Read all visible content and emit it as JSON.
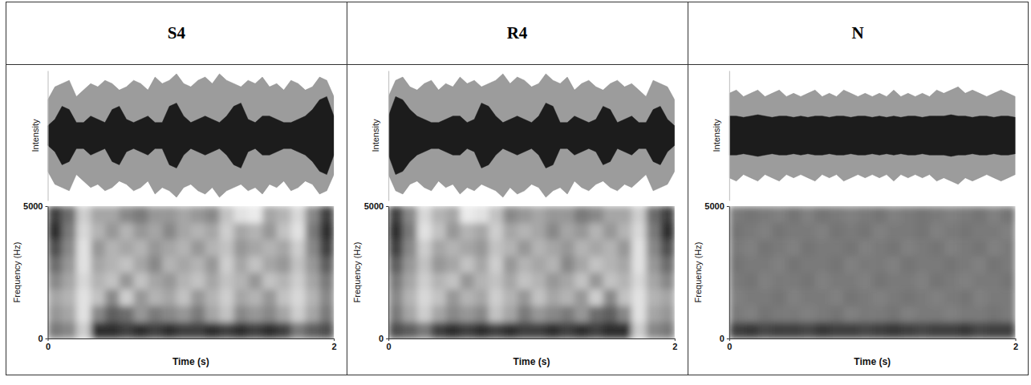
{
  "chart_data": [
    {
      "type": "spectrogram",
      "title": "S4",
      "waveform": {
        "ylabel": "Intensity",
        "xlim": [
          0,
          2
        ],
        "ylim": [
          -1,
          1
        ],
        "tick_labels": false,
        "x": [
          0,
          0.05,
          0.1,
          0.15,
          0.2,
          0.25,
          0.3,
          0.35,
          0.4,
          0.45,
          0.5,
          0.55,
          0.6,
          0.65,
          0.7,
          0.75,
          0.8,
          0.85,
          0.9,
          0.95,
          1,
          1.05,
          1.1,
          1.15,
          1.2,
          1.25,
          1.3,
          1.35,
          1.4,
          1.45,
          1.5,
          1.55,
          1.6,
          1.65,
          1.7,
          1.75,
          1.8,
          1.85,
          1.9,
          1.95,
          2
        ],
        "values": [
          0.55,
          0.75,
          0.8,
          0.85,
          0.6,
          0.7,
          0.8,
          0.75,
          0.85,
          0.8,
          0.7,
          0.75,
          0.85,
          0.8,
          0.7,
          0.9,
          0.8,
          0.85,
          0.95,
          0.8,
          0.75,
          0.85,
          0.9,
          0.8,
          0.95,
          0.85,
          0.8,
          0.75,
          0.85,
          0.8,
          0.9,
          0.75,
          0.8,
          0.7,
          0.85,
          0.8,
          0.7,
          0.75,
          0.9,
          0.85,
          0.6
        ],
        "rms": [
          0.15,
          0.25,
          0.45,
          0.4,
          0.2,
          0.2,
          0.3,
          0.25,
          0.2,
          0.4,
          0.45,
          0.25,
          0.2,
          0.25,
          0.3,
          0.2,
          0.2,
          0.45,
          0.5,
          0.3,
          0.2,
          0.25,
          0.3,
          0.25,
          0.2,
          0.3,
          0.45,
          0.5,
          0.25,
          0.2,
          0.3,
          0.3,
          0.25,
          0.2,
          0.2,
          0.25,
          0.3,
          0.4,
          0.55,
          0.6,
          0.3
        ]
      },
      "spectrogram": {
        "xlabel": "Time (s)",
        "ylabel": "Frequency (Hz)",
        "xlim": [
          0,
          2
        ],
        "ylim": [
          0,
          5000
        ],
        "xticks": [
          0,
          2
        ],
        "yticks": [
          0,
          5000
        ],
        "x_edges": [
          0,
          0.1,
          0.2,
          0.3,
          0.4,
          0.5,
          0.6,
          0.7,
          0.8,
          0.9,
          1,
          1.1,
          1.2,
          1.3,
          1.4,
          1.5,
          1.6,
          1.7,
          1.8,
          1.9,
          2
        ],
        "y_edges": [
          0,
          625,
          1250,
          1875,
          2500,
          3125,
          3750,
          4375,
          5000
        ],
        "cells": [
          [
            0.6,
            0.55,
            0.3,
            0.85,
            0.85,
            0.8,
            0.85,
            0.8,
            0.85,
            0.8,
            0.8,
            0.85,
            0.8,
            0.85,
            0.8,
            0.85,
            0.8,
            0.6,
            0.7,
            0.75
          ],
          [
            0.5,
            0.45,
            0.2,
            0.55,
            0.7,
            0.65,
            0.5,
            0.6,
            0.55,
            0.5,
            0.6,
            0.45,
            0.35,
            0.55,
            0.5,
            0.55,
            0.45,
            0.3,
            0.45,
            0.6
          ],
          [
            0.45,
            0.4,
            0.2,
            0.35,
            0.55,
            0.3,
            0.5,
            0.4,
            0.45,
            0.35,
            0.5,
            0.4,
            0.3,
            0.45,
            0.4,
            0.5,
            0.35,
            0.25,
            0.4,
            0.55
          ],
          [
            0.55,
            0.45,
            0.25,
            0.4,
            0.35,
            0.5,
            0.35,
            0.45,
            0.5,
            0.4,
            0.35,
            0.45,
            0.35,
            0.4,
            0.5,
            0.35,
            0.4,
            0.3,
            0.45,
            0.6
          ],
          [
            0.65,
            0.5,
            0.2,
            0.45,
            0.4,
            0.35,
            0.45,
            0.55,
            0.4,
            0.45,
            0.4,
            0.5,
            0.3,
            0.45,
            0.35,
            0.45,
            0.5,
            0.35,
            0.5,
            0.7
          ],
          [
            0.75,
            0.55,
            0.2,
            0.5,
            0.4,
            0.45,
            0.4,
            0.5,
            0.45,
            0.4,
            0.5,
            0.4,
            0.35,
            0.5,
            0.45,
            0.4,
            0.45,
            0.3,
            0.55,
            0.8
          ],
          [
            0.85,
            0.6,
            0.25,
            0.4,
            0.5,
            0.4,
            0.5,
            0.45,
            0.55,
            0.45,
            0.4,
            0.45,
            0.3,
            0.45,
            0.4,
            0.5,
            0.35,
            0.2,
            0.6,
            0.85
          ],
          [
            0.8,
            0.65,
            0.3,
            0.45,
            0.45,
            0.55,
            0.6,
            0.5,
            0.5,
            0.45,
            0.5,
            0.55,
            0.35,
            0.2,
            0.15,
            0.45,
            0.4,
            0.25,
            0.55,
            0.8
          ]
        ]
      }
    },
    {
      "type": "spectrogram",
      "title": "R4",
      "waveform": {
        "ylabel": "Intensity",
        "xlim": [
          0,
          2
        ],
        "ylim": [
          -1,
          1
        ],
        "tick_labels": false,
        "x": [
          0,
          0.05,
          0.1,
          0.15,
          0.2,
          0.25,
          0.3,
          0.35,
          0.4,
          0.45,
          0.5,
          0.55,
          0.6,
          0.65,
          0.7,
          0.75,
          0.8,
          0.85,
          0.9,
          0.95,
          1,
          1.05,
          1.1,
          1.15,
          1.2,
          1.25,
          1.3,
          1.35,
          1.4,
          1.45,
          1.5,
          1.55,
          1.6,
          1.65,
          1.7,
          1.75,
          1.8,
          1.85,
          1.9,
          1.95,
          2
        ],
        "values": [
          0.6,
          0.85,
          0.9,
          0.75,
          0.7,
          0.8,
          0.85,
          0.7,
          0.8,
          0.75,
          0.9,
          0.8,
          0.85,
          0.75,
          0.8,
          0.85,
          0.95,
          0.8,
          0.9,
          0.85,
          0.75,
          0.8,
          0.95,
          0.85,
          0.8,
          0.9,
          0.7,
          0.8,
          0.85,
          0.75,
          0.7,
          0.8,
          0.85,
          0.75,
          0.8,
          0.7,
          0.6,
          0.85,
          0.8,
          0.75,
          0.55
        ],
        "rms": [
          0.3,
          0.6,
          0.55,
          0.4,
          0.3,
          0.25,
          0.2,
          0.2,
          0.25,
          0.3,
          0.3,
          0.2,
          0.25,
          0.5,
          0.45,
          0.3,
          0.2,
          0.25,
          0.3,
          0.25,
          0.2,
          0.3,
          0.5,
          0.45,
          0.2,
          0.2,
          0.3,
          0.25,
          0.2,
          0.25,
          0.45,
          0.4,
          0.2,
          0.25,
          0.3,
          0.2,
          0.2,
          0.4,
          0.45,
          0.25,
          0.15
        ]
      },
      "spectrogram": {
        "xlabel": "Time (s)",
        "ylabel": "Frequency (Hz)",
        "xlim": [
          0,
          2
        ],
        "ylim": [
          0,
          5000
        ],
        "xticks": [
          0,
          2
        ],
        "yticks": [
          0,
          5000
        ],
        "x_edges": [
          0,
          0.1,
          0.2,
          0.3,
          0.4,
          0.5,
          0.6,
          0.7,
          0.8,
          0.9,
          1,
          1.1,
          1.2,
          1.3,
          1.4,
          1.5,
          1.6,
          1.7,
          1.8,
          1.9,
          2
        ],
        "y_edges": [
          0,
          625,
          1250,
          1875,
          2500,
          3125,
          3750,
          4375,
          5000
        ],
        "cells": [
          [
            0.75,
            0.7,
            0.6,
            0.8,
            0.85,
            0.8,
            0.85,
            0.8,
            0.85,
            0.8,
            0.8,
            0.85,
            0.8,
            0.85,
            0.8,
            0.85,
            0.85,
            0.3,
            0.55,
            0.6
          ],
          [
            0.6,
            0.45,
            0.3,
            0.45,
            0.55,
            0.5,
            0.55,
            0.35,
            0.45,
            0.6,
            0.5,
            0.55,
            0.6,
            0.5,
            0.65,
            0.7,
            0.55,
            0.2,
            0.45,
            0.5
          ],
          [
            0.55,
            0.4,
            0.25,
            0.35,
            0.5,
            0.4,
            0.45,
            0.3,
            0.4,
            0.5,
            0.35,
            0.45,
            0.4,
            0.5,
            0.3,
            0.55,
            0.35,
            0.2,
            0.4,
            0.45
          ],
          [
            0.6,
            0.45,
            0.3,
            0.4,
            0.35,
            0.5,
            0.4,
            0.35,
            0.45,
            0.35,
            0.4,
            0.5,
            0.45,
            0.35,
            0.5,
            0.35,
            0.4,
            0.25,
            0.45,
            0.55
          ],
          [
            0.7,
            0.5,
            0.35,
            0.5,
            0.45,
            0.35,
            0.45,
            0.3,
            0.5,
            0.4,
            0.45,
            0.4,
            0.55,
            0.45,
            0.35,
            0.4,
            0.45,
            0.2,
            0.5,
            0.65
          ],
          [
            0.8,
            0.55,
            0.3,
            0.45,
            0.4,
            0.45,
            0.5,
            0.35,
            0.4,
            0.5,
            0.4,
            0.45,
            0.5,
            0.4,
            0.45,
            0.4,
            0.5,
            0.2,
            0.55,
            0.75
          ],
          [
            0.85,
            0.6,
            0.2,
            0.35,
            0.5,
            0.4,
            0.45,
            0.3,
            0.45,
            0.4,
            0.45,
            0.55,
            0.45,
            0.5,
            0.4,
            0.5,
            0.4,
            0.25,
            0.6,
            0.85
          ],
          [
            0.8,
            0.55,
            0.25,
            0.4,
            0.45,
            0.15,
            0.2,
            0.35,
            0.55,
            0.5,
            0.45,
            0.5,
            0.5,
            0.6,
            0.55,
            0.45,
            0.45,
            0.3,
            0.65,
            0.8
          ]
        ]
      }
    },
    {
      "type": "spectrogram",
      "title": "N",
      "waveform": {
        "ylabel": "Intensity",
        "xlim": [
          0,
          2
        ],
        "ylim": [
          -1,
          1
        ],
        "tick_labels": false,
        "x": [
          0,
          0.05,
          0.1,
          0.15,
          0.2,
          0.25,
          0.3,
          0.35,
          0.4,
          0.45,
          0.5,
          0.55,
          0.6,
          0.65,
          0.7,
          0.75,
          0.8,
          0.85,
          0.9,
          0.95,
          1,
          1.05,
          1.1,
          1.15,
          1.2,
          1.25,
          1.3,
          1.35,
          1.4,
          1.45,
          1.5,
          1.55,
          1.6,
          1.65,
          1.7,
          1.75,
          1.8,
          1.85,
          1.9,
          1.95,
          2
        ],
        "values": [
          0.65,
          0.7,
          0.6,
          0.65,
          0.7,
          0.6,
          0.65,
          0.7,
          0.6,
          0.65,
          0.6,
          0.65,
          0.7,
          0.6,
          0.65,
          0.6,
          0.7,
          0.65,
          0.6,
          0.65,
          0.6,
          0.65,
          0.6,
          0.7,
          0.6,
          0.65,
          0.6,
          0.65,
          0.6,
          0.7,
          0.65,
          0.7,
          0.75,
          0.65,
          0.7,
          0.65,
          0.6,
          0.65,
          0.7,
          0.65,
          0.6
        ],
        "rms": [
          0.3,
          0.3,
          0.28,
          0.3,
          0.32,
          0.3,
          0.28,
          0.3,
          0.3,
          0.28,
          0.3,
          0.28,
          0.3,
          0.3,
          0.28,
          0.3,
          0.3,
          0.28,
          0.3,
          0.3,
          0.28,
          0.3,
          0.28,
          0.3,
          0.28,
          0.3,
          0.3,
          0.28,
          0.3,
          0.3,
          0.3,
          0.32,
          0.3,
          0.3,
          0.28,
          0.3,
          0.3,
          0.28,
          0.3,
          0.3,
          0.28
        ]
      },
      "spectrogram": {
        "xlabel": "Time (s)",
        "ylabel": "Frequency (Hz)",
        "xlim": [
          0,
          2
        ],
        "ylim": [
          0,
          5000
        ],
        "xticks": [
          0,
          2
        ],
        "yticks": [
          0,
          5000
        ],
        "x_edges": [
          0,
          0.1,
          0.2,
          0.3,
          0.4,
          0.5,
          0.6,
          0.7,
          0.8,
          0.9,
          1,
          1.1,
          1.2,
          1.3,
          1.4,
          1.5,
          1.6,
          1.7,
          1.8,
          1.9,
          2
        ],
        "y_edges": [
          0,
          625,
          1250,
          1875,
          2500,
          3125,
          3750,
          4375,
          5000
        ],
        "cells": [
          [
            0.8,
            0.82,
            0.78,
            0.8,
            0.8,
            0.78,
            0.82,
            0.8,
            0.8,
            0.78,
            0.8,
            0.82,
            0.8,
            0.78,
            0.8,
            0.8,
            0.82,
            0.78,
            0.8,
            0.8
          ],
          [
            0.6,
            0.58,
            0.62,
            0.6,
            0.6,
            0.58,
            0.6,
            0.62,
            0.58,
            0.6,
            0.6,
            0.62,
            0.58,
            0.6,
            0.6,
            0.58,
            0.6,
            0.6,
            0.62,
            0.6
          ],
          [
            0.58,
            0.6,
            0.6,
            0.62,
            0.58,
            0.6,
            0.6,
            0.58,
            0.62,
            0.6,
            0.58,
            0.6,
            0.62,
            0.6,
            0.58,
            0.6,
            0.62,
            0.58,
            0.6,
            0.6
          ],
          [
            0.6,
            0.62,
            0.58,
            0.6,
            0.6,
            0.62,
            0.58,
            0.6,
            0.6,
            0.58,
            0.62,
            0.6,
            0.6,
            0.58,
            0.62,
            0.6,
            0.58,
            0.6,
            0.6,
            0.62
          ],
          [
            0.62,
            0.6,
            0.6,
            0.58,
            0.62,
            0.6,
            0.6,
            0.62,
            0.58,
            0.6,
            0.6,
            0.58,
            0.62,
            0.6,
            0.6,
            0.62,
            0.6,
            0.58,
            0.62,
            0.6
          ],
          [
            0.6,
            0.58,
            0.62,
            0.6,
            0.58,
            0.62,
            0.6,
            0.6,
            0.62,
            0.58,
            0.6,
            0.62,
            0.58,
            0.6,
            0.62,
            0.58,
            0.6,
            0.62,
            0.58,
            0.6
          ],
          [
            0.62,
            0.6,
            0.58,
            0.62,
            0.6,
            0.6,
            0.58,
            0.62,
            0.6,
            0.62,
            0.58,
            0.6,
            0.6,
            0.62,
            0.58,
            0.6,
            0.62,
            0.6,
            0.6,
            0.58
          ],
          [
            0.6,
            0.62,
            0.6,
            0.58,
            0.62,
            0.58,
            0.62,
            0.6,
            0.58,
            0.6,
            0.62,
            0.58,
            0.6,
            0.62,
            0.6,
            0.58,
            0.6,
            0.62,
            0.58,
            0.62
          ]
        ]
      }
    }
  ]
}
